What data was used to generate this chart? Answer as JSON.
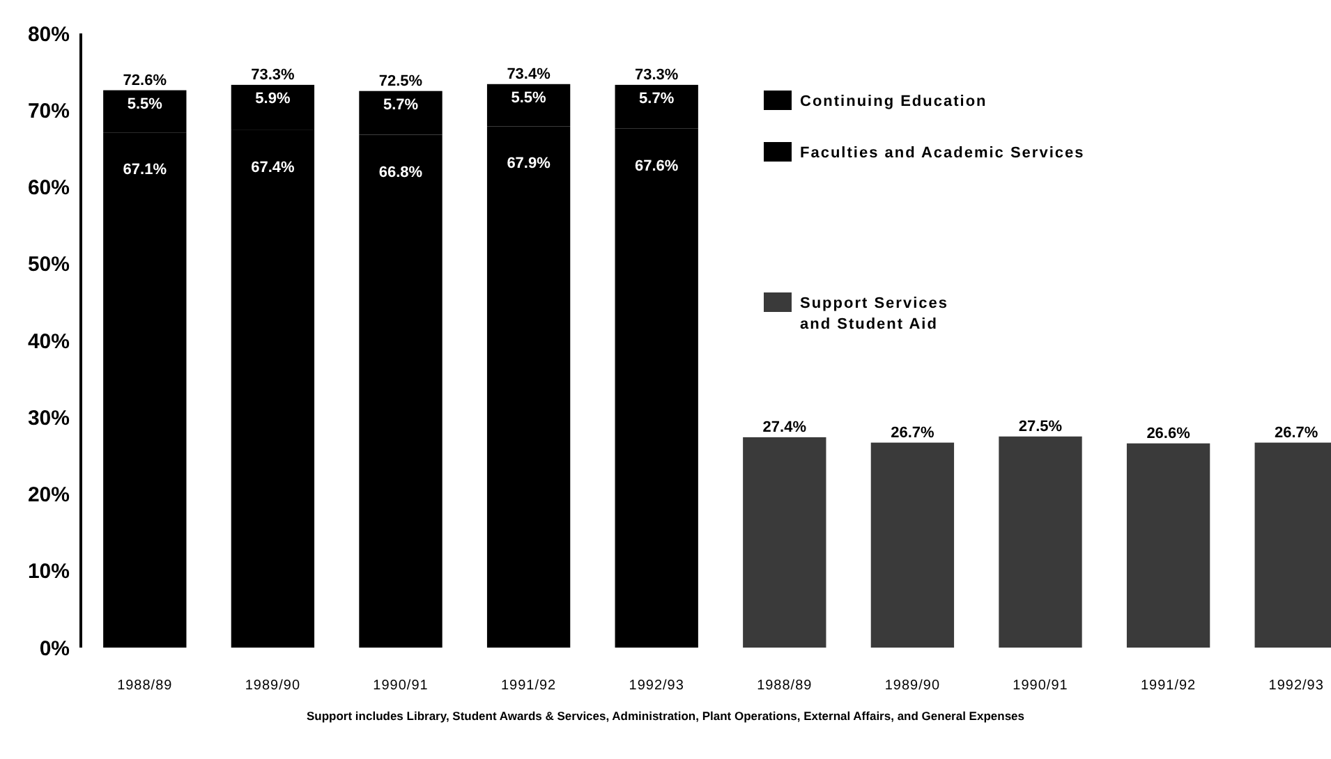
{
  "chart_data": {
    "type": "bar",
    "stacked": true,
    "categories": [
      "1988/89",
      "1989/90",
      "1990/91",
      "1991/92",
      "1992/93",
      "1988/89",
      "1989/90",
      "1990/91",
      "1991/92",
      "1992/93"
    ],
    "series": [
      {
        "name": "Faculties and Academic Services",
        "color": "#000000",
        "values": [
          67.1,
          67.4,
          66.8,
          67.9,
          67.6,
          null,
          null,
          null,
          null,
          null
        ],
        "value_labels": [
          "67.1%",
          "67.4%",
          "66.8%",
          "67.9%",
          "67.6%",
          null,
          null,
          null,
          null,
          null
        ]
      },
      {
        "name": "Continuing Education",
        "color": "#000000",
        "values": [
          5.5,
          5.9,
          5.7,
          5.5,
          5.7,
          null,
          null,
          null,
          null,
          null
        ],
        "value_labels": [
          "5.5%",
          "5.9%",
          "5.7%",
          "5.5%",
          "5.7%",
          null,
          null,
          null,
          null,
          null
        ]
      },
      {
        "name": "Support Services and Student Aid",
        "color": "#3a3a3a",
        "values": [
          null,
          null,
          null,
          null,
          null,
          27.4,
          26.7,
          27.5,
          26.6,
          26.7
        ]
      }
    ],
    "totals": [
      "72.6%",
      "73.3%",
      "72.5%",
      "73.4%",
      "73.3%",
      "27.4%",
      "26.7%",
      "27.5%",
      "26.6%",
      "26.7%"
    ],
    "ylim": [
      0,
      80
    ],
    "yticks": [
      {
        "value": 0,
        "label": "0%"
      },
      {
        "value": 10,
        "label": "10%"
      },
      {
        "value": 20,
        "label": "20%"
      },
      {
        "value": 30,
        "label": "30%"
      },
      {
        "value": 40,
        "label": "40%"
      },
      {
        "value": 50,
        "label": "50%"
      },
      {
        "value": 60,
        "label": "60%"
      },
      {
        "value": 70,
        "label": "70%"
      },
      {
        "value": 80,
        "label": "80%"
      }
    ],
    "legend": "top right",
    "grid": false,
    "annotations": [
      "Support includes Library, Student Awards & Services, Administration, Plant Operations, External Affairs, and General Expenses"
    ]
  }
}
